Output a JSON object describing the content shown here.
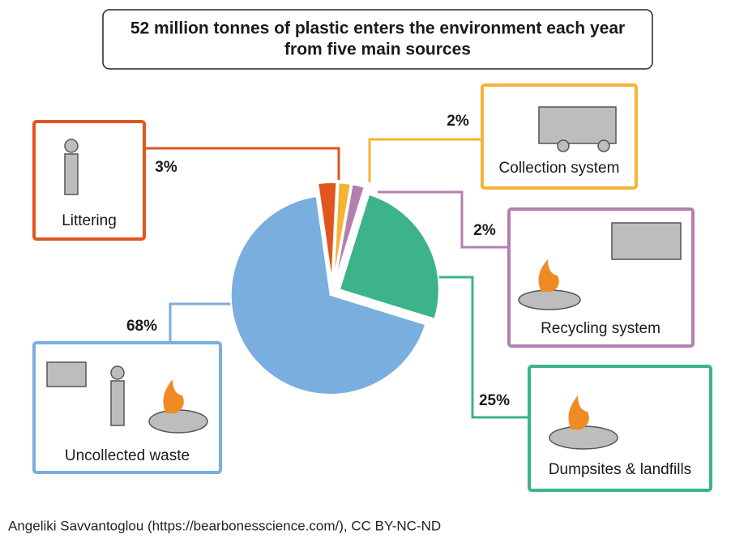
{
  "chart_data": {
    "type": "pie",
    "title": [
      "52 million tonnes of plastic enters the environment each year",
      "from five main sources"
    ],
    "categories": [
      "Littering",
      "Collection system",
      "Recycling system",
      "Dumpsites & landfills",
      "Uncollected waste"
    ],
    "values": [
      3,
      2,
      2,
      25,
      68
    ],
    "value_labels": [
      "3%",
      "2%",
      "2%",
      "25%",
      "68%"
    ],
    "colors": [
      "#e0561f",
      "#f5b335",
      "#b47fb0",
      "#3db38a",
      "#7aaedf"
    ]
  },
  "credit": "Angeliki Savvantoglou (https://bearbonesscience.com/), CC BY-NC-ND"
}
